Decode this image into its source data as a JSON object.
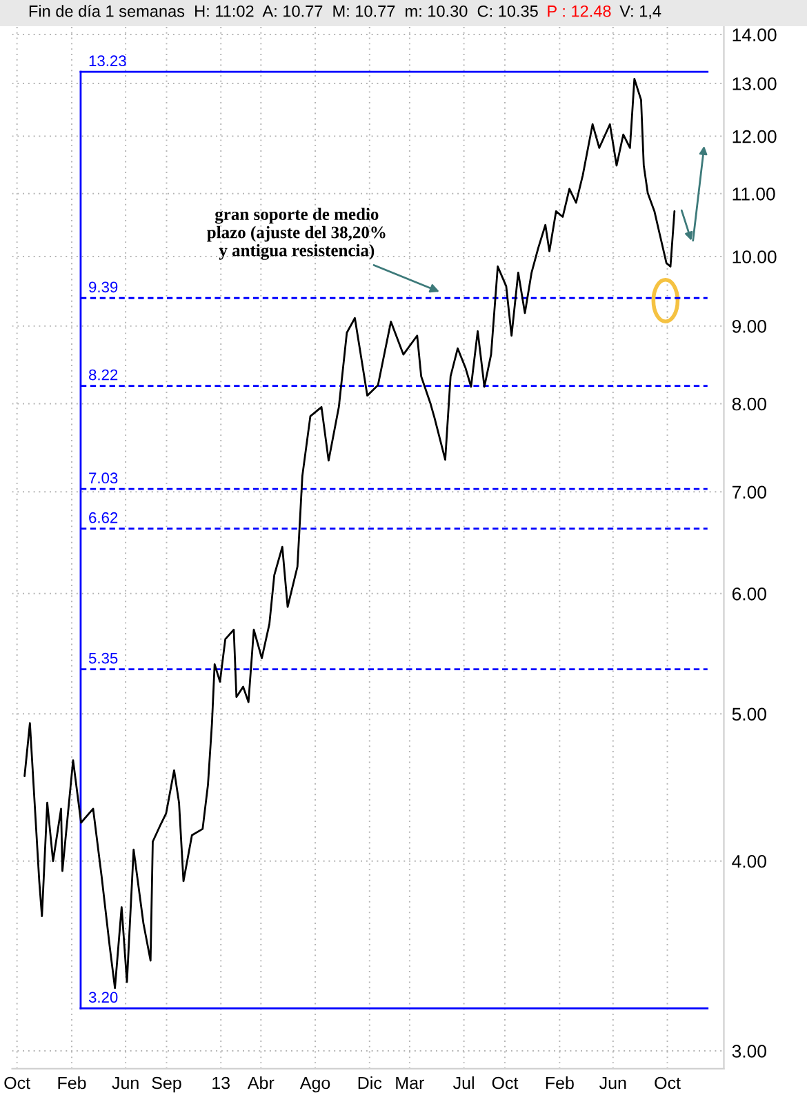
{
  "chart_data": {
    "type": "line",
    "title": "Fin de día 1 semanas  H: 11:02  A: 10.77  M: 10.77  m: 10.30  C: 10.35",
    "subtitle": "P : 12.48",
    "annotations": [
      {
        "text": "gran soporte de medio\nplazo (ajuste del 38,20%\ny antigua resistencia)",
        "x": "2014-05-11",
        "y": 9.47
      },
      "V: 1,4"
    ],
    "x": [
      "2011-10-18",
      "2011-10-30",
      "2011-11-20",
      "2011-11-26",
      "2011-12-08",
      "2011-12-21",
      "2012-01-08",
      "2012-01-11",
      "2012-02-04",
      "2012-02-22",
      "2012-03-20",
      "2012-04-08",
      "2012-04-26",
      "2012-05-08",
      "2012-05-23",
      "2012-06-04",
      "2012-06-19",
      "2012-07-11",
      "2012-07-27",
      "2012-08-01",
      "2012-08-19",
      "2012-08-31",
      "2012-09-18",
      "2012-09-29",
      "2012-10-09",
      "2012-10-28",
      "2012-11-21",
      "2012-12-03",
      "2012-12-12",
      "2012-12-18",
      "2012-12-30",
      "2013-01-11",
      "2013-01-30",
      "2013-02-05",
      "2013-02-20",
      "2013-03-04",
      "2013-03-16",
      "2013-04-03",
      "2013-04-20",
      "2013-05-01",
      "2013-05-19",
      "2013-05-31",
      "2013-06-22",
      "2013-07-03",
      "2013-07-21",
      "2013-08-15",
      "2013-08-31",
      "2013-09-23",
      "2013-10-11",
      "2013-10-29",
      "2013-11-26",
      "2013-12-20",
      "2014-01-18",
      "2014-02-15",
      "2014-03-18",
      "2014-03-27",
      "2014-04-17",
      "2014-04-26",
      "2014-05-20",
      "2014-06-01",
      "2014-06-17",
      "2014-07-05",
      "2014-07-17",
      "2014-08-01",
      "2014-08-16",
      "2014-08-31",
      "2014-09-15",
      "2014-10-04",
      "2014-10-16",
      "2014-10-31",
      "2014-11-15",
      "2014-11-30",
      "2014-12-15",
      "2014-12-31",
      "2015-01-09",
      "2015-01-24",
      "2015-02-08",
      "2015-02-23",
      "2015-03-10",
      "2015-03-25",
      "2015-04-16",
      "2015-05-01",
      "2015-05-25",
      "2015-06-09",
      "2015-06-24",
      "2015-07-09",
      "2015-07-19",
      "2015-08-03",
      "2015-08-09",
      "2015-08-18",
      "2015-09-02",
      "2015-09-14",
      "2015-09-29",
      "2015-10-08",
      "2015-10-17"
    ],
    "series": [
      {
        "color": "#000000",
        "values": [
          4.55,
          4.93,
          3.88,
          3.68,
          4.37,
          4.0,
          4.33,
          3.94,
          4.66,
          4.24,
          4.33,
          3.91,
          3.52,
          3.3,
          3.73,
          3.33,
          4.07,
          3.64,
          3.44,
          4.12,
          4.23,
          4.3,
          4.59,
          4.37,
          3.88,
          4.16,
          4.2,
          4.49,
          4.93,
          5.39,
          5.25,
          5.6,
          5.68,
          5.13,
          5.21,
          5.09,
          5.68,
          5.44,
          5.73,
          6.17,
          6.44,
          5.88,
          6.25,
          7.17,
          7.85,
          7.96,
          7.34,
          7.96,
          8.91,
          9.11,
          8.1,
          8.23,
          9.06,
          8.62,
          8.87,
          8.34,
          8.0,
          7.83,
          7.35,
          8.34,
          8.7,
          8.44,
          8.21,
          8.93,
          8.21,
          8.62,
          9.85,
          9.56,
          8.87,
          9.76,
          9.18,
          9.76,
          10.13,
          10.49,
          10.08,
          10.71,
          10.62,
          11.08,
          10.85,
          11.31,
          12.22,
          11.79,
          12.22,
          11.48,
          12.03,
          11.79,
          13.09,
          12.68,
          11.48,
          11.01,
          10.71,
          10.34,
          9.9,
          9.85,
          10.71
        ]
      }
    ],
    "xlim": [
      "2011-09-20",
      "2016-02-05"
    ],
    "xticks": [
      {
        "value": "2011-10-01",
        "label": "Oct"
      },
      {
        "value": "2012-02-01",
        "label": "Feb"
      },
      {
        "value": "2012-06-01",
        "label": "Jun"
      },
      {
        "value": "2012-09-01",
        "label": "Sep"
      },
      {
        "value": "2013-01-01",
        "label": "13"
      },
      {
        "value": "2013-04-01",
        "label": "Abr"
      },
      {
        "value": "2013-08-01",
        "label": "Ago"
      },
      {
        "value": "2013-12-01",
        "label": "Dic"
      },
      {
        "value": "2014-03-01",
        "label": "Mar"
      },
      {
        "value": "2014-07-01",
        "label": "Jul"
      },
      {
        "value": "2014-10-01",
        "label": "Oct"
      },
      {
        "value": "2015-02-01",
        "label": "Feb"
      },
      {
        "value": "2015-06-01",
        "label": "Jun"
      },
      {
        "value": "2015-10-01",
        "label": "Oct"
      }
    ],
    "ylim": [
      2.92,
      14.2
    ],
    "log": true,
    "yticks": [
      {
        "value": 3,
        "label": "3.00"
      },
      {
        "value": 4,
        "label": "4.00"
      },
      {
        "value": 5,
        "label": "5.00"
      },
      {
        "value": 6,
        "label": "6.00"
      },
      {
        "value": 7,
        "label": "7.00"
      },
      {
        "value": 8,
        "label": "8.00"
      },
      {
        "value": 9,
        "label": "9.00"
      },
      {
        "value": 10,
        "label": "10.00"
      },
      {
        "value": 11,
        "label": "11.00"
      },
      {
        "value": 12,
        "label": "12.00"
      },
      {
        "value": 13,
        "label": "13.00"
      },
      {
        "value": 14,
        "label": "14.00"
      }
    ],
    "ref_lines": [
      {
        "axis": "x",
        "value": "2012-02-21",
        "color": "#0000ff",
        "line_style": "solid"
      },
      {
        "axis": "y",
        "value": 13.23,
        "label": "13.23",
        "color": "#0000ff",
        "line_style": "solid"
      },
      {
        "axis": "y",
        "value": 9.39,
        "label": "9.39",
        "color": "#0000ff",
        "line_style": "dashed"
      },
      {
        "axis": "y",
        "value": 8.22,
        "label": "8.22",
        "color": "#0000ff",
        "line_style": "dashed"
      },
      {
        "axis": "y",
        "value": 7.03,
        "label": "7.03",
        "color": "#0000ff",
        "line_style": "dashed"
      },
      {
        "axis": "y",
        "value": 6.62,
        "label": "6.62",
        "color": "#0000ff",
        "line_style": "dashed"
      },
      {
        "axis": "y",
        "value": 5.35,
        "label": "5.35",
        "color": "#0000ff",
        "line_style": "dashed"
      },
      {
        "axis": "y",
        "value": 3.2,
        "label": "3.20",
        "color": "#0000ff",
        "line_style": "solid"
      }
    ],
    "grid": true,
    "tick_labels": "xy",
    "marker": "none",
    "line_style": "solid"
  }
}
